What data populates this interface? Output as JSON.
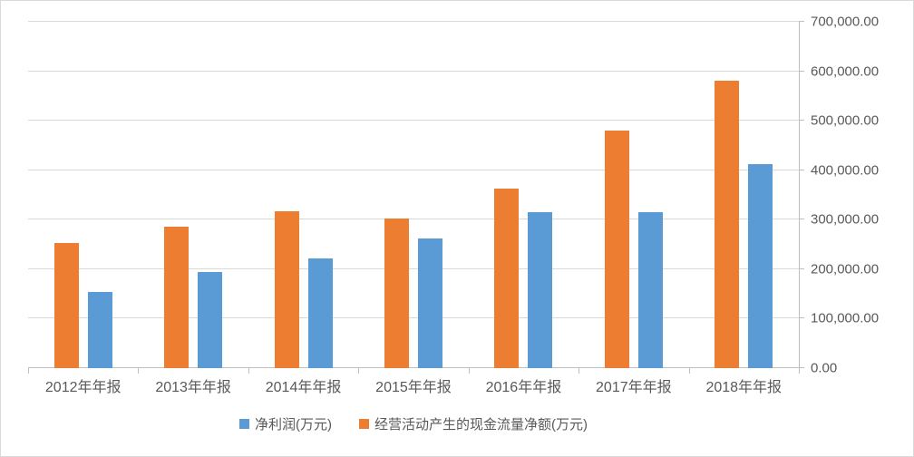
{
  "chart_data": {
    "type": "bar",
    "categories": [
      "2012年年报",
      "2013年年报",
      "2014年年报",
      "2015年年报",
      "2016年年报",
      "2017年年报",
      "2018年年报"
    ],
    "series": [
      {
        "name": "净利润(万元)",
        "color": "#5B9BD5",
        "values": [
          154000,
          194000,
          222000,
          262000,
          315000,
          315000,
          412000
        ]
      },
      {
        "name": "经营活动产生的现金流量净额(万元)",
        "color": "#ED7D31",
        "values": [
          253000,
          286000,
          317000,
          302000,
          363000,
          480000,
          581000
        ]
      }
    ],
    "ylim": [
      0,
      700000
    ],
    "y_tick_step": 100000,
    "y_tick_labels": [
      "0.00",
      "100,000.00",
      "200,000.00",
      "300,000.00",
      "400,000.00",
      "500,000.00",
      "600,000.00",
      "700,000.00"
    ],
    "y_axis_side": "right",
    "grid": true,
    "legend_position": "bottom",
    "colors": {
      "gridline": "#d9d9d9",
      "axis": "#bfbfbf",
      "text": "#595959",
      "background": "#ffffff"
    }
  }
}
